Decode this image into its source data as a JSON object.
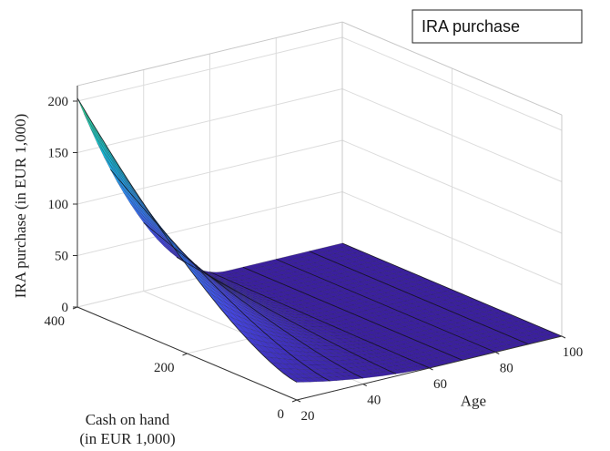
{
  "chart_data": {
    "type": "surface",
    "title": "",
    "legend": {
      "entries": [
        "IRA purchase"
      ],
      "placement": "top-right"
    },
    "xlabel": "Age",
    "ylabel": "Cash on hand\n(in EUR 1,000)",
    "zlabel": "IRA purchase (in EUR 1,000)",
    "xlim": [
      20,
      100
    ],
    "ylim": [
      0,
      400
    ],
    "zlim": [
      0,
      200
    ],
    "xticks": [
      "20",
      "40",
      "60",
      "80",
      "100"
    ],
    "yticks": [
      "0",
      "200",
      "400"
    ],
    "zticks": [
      "0",
      "50",
      "100",
      "150",
      "200"
    ],
    "grid": true,
    "colormap": [
      "#3b1fa0",
      "#4546e0",
      "#2f86f0",
      "#13bfd0",
      "#35cf8a"
    ],
    "age": [
      20,
      25,
      30,
      35,
      40,
      45,
      50,
      55,
      60,
      65,
      70,
      75,
      80,
      85,
      90,
      95,
      100
    ],
    "cash": [
      0,
      50,
      100,
      150,
      200,
      250,
      300,
      350,
      400
    ],
    "surface_description": "IRA purchase is highest at age 20 with cash on hand 400 (about 203), declining with age and reaching roughly 0 by age 65; below age 65 it increases with cash on hand."
  }
}
